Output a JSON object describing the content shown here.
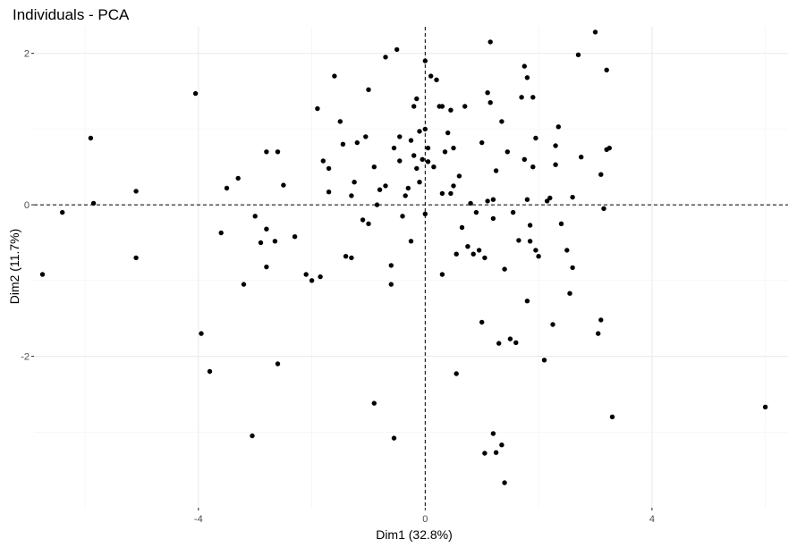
{
  "chart_data": {
    "type": "scatter",
    "title": "Individuals - PCA",
    "xlabel": "Dim1 (32.8%)",
    "ylabel": "Dim2 (11.7%)",
    "xlim": [
      -6.9,
      6.4
    ],
    "ylim": [
      -4.0,
      2.35
    ],
    "xticks": [
      -4,
      0,
      4
    ],
    "xtick_labels": [
      "-4",
      "0",
      "4"
    ],
    "yticks": [
      -2,
      0,
      2
    ],
    "ytick_labels": [
      "-2",
      "0",
      "2"
    ],
    "reference_lines": {
      "x": 0,
      "y": 0,
      "style": "dashed"
    },
    "grid": true,
    "points": [
      [
        -6.75,
        -0.92
      ],
      [
        -6.4,
        -0.1
      ],
      [
        -5.9,
        0.88
      ],
      [
        -5.85,
        0.02
      ],
      [
        -5.1,
        0.18
      ],
      [
        -5.1,
        -0.7
      ],
      [
        -4.05,
        1.47
      ],
      [
        -3.95,
        -1.7
      ],
      [
        -3.8,
        -2.2
      ],
      [
        -3.6,
        -0.37
      ],
      [
        -3.5,
        0.22
      ],
      [
        -3.3,
        0.35
      ],
      [
        -3.2,
        -1.05
      ],
      [
        -3.0,
        -0.15
      ],
      [
        -2.9,
        -0.5
      ],
      [
        -2.8,
        -0.32
      ],
      [
        -2.8,
        0.7
      ],
      [
        -2.8,
        -0.82
      ],
      [
        -2.6,
        0.7
      ],
      [
        -2.65,
        -0.48
      ],
      [
        -2.6,
        -2.1
      ],
      [
        -2.5,
        0.26
      ],
      [
        -2.3,
        -0.42
      ],
      [
        -2.1,
        -0.92
      ],
      [
        -2.0,
        -1.0
      ],
      [
        -1.9,
        1.27
      ],
      [
        -1.85,
        -0.95
      ],
      [
        -1.8,
        0.58
      ],
      [
        -1.7,
        0.48
      ],
      [
        -1.7,
        0.17
      ],
      [
        -1.6,
        1.7
      ],
      [
        -1.5,
        1.1
      ],
      [
        -1.45,
        0.8
      ],
      [
        -1.4,
        -0.68
      ],
      [
        -1.3,
        0.12
      ],
      [
        -1.3,
        -0.7
      ],
      [
        -1.25,
        0.3
      ],
      [
        -1.2,
        0.82
      ],
      [
        -1.1,
        -0.2
      ],
      [
        -1.05,
        0.9
      ],
      [
        -1.0,
        -0.25
      ],
      [
        -1.0,
        1.52
      ],
      [
        -0.9,
        0.5
      ],
      [
        -0.9,
        -2.62
      ],
      [
        -0.85,
        0.0
      ],
      [
        -0.8,
        0.2
      ],
      [
        -0.7,
        0.25
      ],
      [
        -0.7,
        1.95
      ],
      [
        -0.6,
        -0.8
      ],
      [
        -0.6,
        -1.05
      ],
      [
        -0.55,
        0.75
      ],
      [
        -0.55,
        -3.08
      ],
      [
        -0.5,
        2.05
      ],
      [
        -0.45,
        0.9
      ],
      [
        -0.45,
        0.58
      ],
      [
        -0.4,
        -0.15
      ],
      [
        -0.35,
        0.12
      ],
      [
        -0.3,
        0.22
      ],
      [
        -0.25,
        0.85
      ],
      [
        -0.25,
        -0.48
      ],
      [
        -0.2,
        0.65
      ],
      [
        -0.2,
        1.3
      ],
      [
        -0.15,
        1.4
      ],
      [
        -0.15,
        0.48
      ],
      [
        -0.1,
        0.97
      ],
      [
        -0.1,
        0.3
      ],
      [
        -0.05,
        0.6
      ],
      [
        0.0,
        1.0
      ],
      [
        0.0,
        -0.12
      ],
      [
        0.0,
        1.9
      ],
      [
        0.05,
        0.57
      ],
      [
        0.05,
        0.75
      ],
      [
        0.1,
        1.7
      ],
      [
        0.15,
        0.5
      ],
      [
        0.2,
        1.65
      ],
      [
        0.25,
        1.3
      ],
      [
        0.3,
        1.3
      ],
      [
        0.3,
        0.15
      ],
      [
        0.35,
        0.7
      ],
      [
        0.4,
        0.95
      ],
      [
        0.45,
        1.25
      ],
      [
        0.45,
        0.15
      ],
      [
        0.5,
        0.25
      ],
      [
        0.5,
        0.75
      ],
      [
        0.55,
        -0.65
      ],
      [
        0.6,
        0.38
      ],
      [
        0.65,
        -0.3
      ],
      [
        0.7,
        1.3
      ],
      [
        0.75,
        -0.55
      ],
      [
        0.8,
        0.02
      ],
      [
        0.85,
        -0.65
      ],
      [
        0.9,
        -0.1
      ],
      [
        0.95,
        -0.6
      ],
      [
        1.0,
        0.82
      ],
      [
        1.05,
        -0.7
      ],
      [
        1.1,
        1.48
      ],
      [
        1.1,
        0.05
      ],
      [
        1.15,
        1.35
      ],
      [
        1.2,
        -0.18
      ],
      [
        1.2,
        0.07
      ],
      [
        1.25,
        0.45
      ],
      [
        1.3,
        -1.83
      ],
      [
        1.35,
        1.1
      ],
      [
        1.4,
        -0.85
      ],
      [
        1.45,
        0.7
      ],
      [
        1.5,
        -1.77
      ],
      [
        1.55,
        -0.1
      ],
      [
        1.6,
        -1.82
      ],
      [
        1.65,
        -0.47
      ],
      [
        1.7,
        1.42
      ],
      [
        1.75,
        0.6
      ],
      [
        1.75,
        1.83
      ],
      [
        1.8,
        1.68
      ],
      [
        1.8,
        0.07
      ],
      [
        1.85,
        -0.27
      ],
      [
        1.9,
        1.42
      ],
      [
        1.9,
        0.5
      ],
      [
        1.95,
        -0.6
      ],
      [
        1.95,
        0.88
      ],
      [
        2.0,
        -0.68
      ],
      [
        2.1,
        -2.05
      ],
      [
        2.15,
        0.05
      ],
      [
        2.2,
        0.09
      ],
      [
        2.25,
        -1.58
      ],
      [
        2.3,
        0.78
      ],
      [
        2.3,
        0.53
      ],
      [
        2.35,
        1.03
      ],
      [
        2.4,
        -0.25
      ],
      [
        2.5,
        -0.6
      ],
      [
        2.55,
        -1.17
      ],
      [
        2.6,
        -0.83
      ],
      [
        2.6,
        0.1
      ],
      [
        2.7,
        1.98
      ],
      [
        2.75,
        0.63
      ],
      [
        3.0,
        2.28
      ],
      [
        3.1,
        -1.52
      ],
      [
        3.05,
        -1.7
      ],
      [
        3.1,
        0.4
      ],
      [
        3.15,
        -0.05
      ],
      [
        3.2,
        0.73
      ],
      [
        3.2,
        1.78
      ],
      [
        3.25,
        0.75
      ],
      [
        3.3,
        -2.8
      ],
      [
        -3.05,
        -3.05
      ],
      [
        1.15,
        2.15
      ],
      [
        1.2,
        -3.02
      ],
      [
        1.25,
        -3.27
      ],
      [
        1.35,
        -3.17
      ],
      [
        1.05,
        -3.28
      ],
      [
        1.4,
        -3.67
      ],
      [
        0.55,
        -2.23
      ],
      [
        1.8,
        -1.27
      ],
      [
        6.0,
        -2.67
      ],
      [
        1.0,
        -1.55
      ],
      [
        1.85,
        -0.48
      ],
      [
        0.3,
        -0.92
      ]
    ]
  }
}
